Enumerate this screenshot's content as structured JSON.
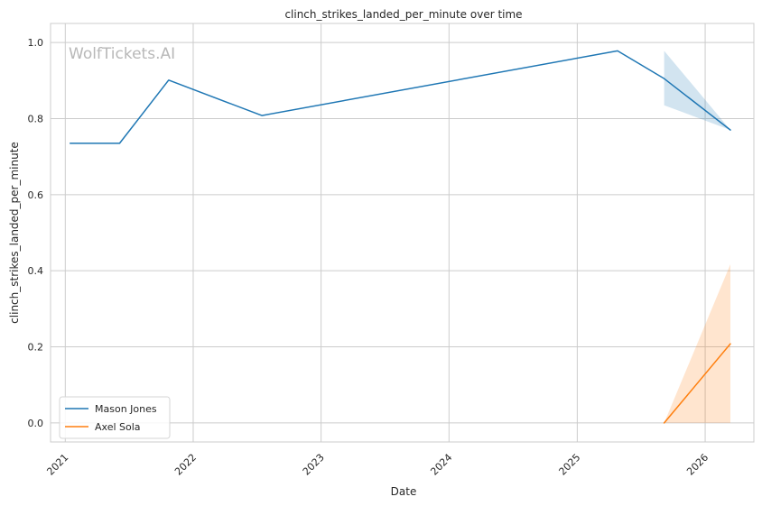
{
  "watermark": "WolfTickets.AI",
  "chart_data": {
    "type": "line",
    "title": "clinch_strikes_landed_per_minute over time",
    "xlabel": "Date",
    "ylabel": "clinch_strikes_landed_per_minute",
    "ylim": [
      -0.05,
      1.05
    ],
    "xlim": [
      "2020-11-20",
      "2026-05-20"
    ],
    "y_ticks": [
      0.0,
      0.2,
      0.4,
      0.6,
      0.8,
      1.0
    ],
    "y_tick_labels": [
      "0.0",
      "0.2",
      "0.4",
      "0.6",
      "0.8",
      "1.0"
    ],
    "x_ticks": [
      "2021-01-01",
      "2022-01-01",
      "2023-01-01",
      "2024-01-01",
      "2025-01-01",
      "2026-01-01"
    ],
    "x_tick_labels": [
      "2021",
      "2022",
      "2023",
      "2024",
      "2025",
      "2026"
    ],
    "grid": true,
    "legend_position": "lower-left",
    "series": [
      {
        "name": "Mason Jones",
        "color": "#1f77b4",
        "points": [
          {
            "x": "2021-01-15",
            "y": 0.735
          },
          {
            "x": "2021-06-05",
            "y": 0.735
          },
          {
            "x": "2021-10-23",
            "y": 0.901
          },
          {
            "x": "2022-07-16",
            "y": 0.808
          },
          {
            "x": "2025-04-26",
            "y": 0.978
          },
          {
            "x": "2025-09-06",
            "y": 0.905
          },
          {
            "x": "2026-03-14",
            "y": 0.77
          }
        ],
        "band": [
          {
            "x": "2025-09-06",
            "lower": 0.835,
            "upper": 0.978
          },
          {
            "x": "2026-03-14",
            "lower": 0.77,
            "upper": 0.77
          }
        ]
      },
      {
        "name": "Axel Sola",
        "color": "#ff7f0e",
        "points": [
          {
            "x": "2025-09-06",
            "y": 0.0
          },
          {
            "x": "2026-03-14",
            "y": 0.208
          }
        ],
        "band": [
          {
            "x": "2025-09-06",
            "lower": 0.0,
            "upper": 0.0
          },
          {
            "x": "2026-03-14",
            "lower": 0.0,
            "upper": 0.417
          }
        ]
      }
    ]
  }
}
